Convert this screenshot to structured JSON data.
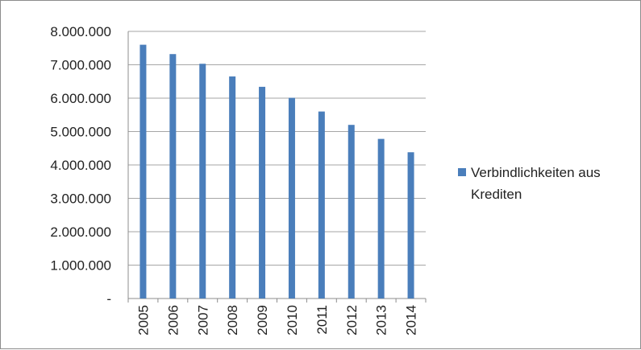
{
  "chart_data": {
    "type": "bar",
    "categories": [
      "2005",
      "2006",
      "2007",
      "2008",
      "2009",
      "2010",
      "2011",
      "2012",
      "2013",
      "2014"
    ],
    "series": [
      {
        "name": "Verbindlichkeiten aus Krediten",
        "values": [
          7600000,
          7320000,
          7030000,
          6650000,
          6340000,
          6010000,
          5600000,
          5200000,
          4780000,
          4380000
        ],
        "color": "#4a7ebb"
      }
    ],
    "title": "",
    "xlabel": "",
    "ylabel": "",
    "ylim": [
      0,
      8000000
    ],
    "y_ticks": [
      0,
      1000000,
      2000000,
      3000000,
      4000000,
      5000000,
      6000000,
      7000000,
      8000000
    ],
    "y_tick_labels": [
      "-",
      "1.000.000",
      "2.000.000",
      "3.000.000",
      "4.000.000",
      "5.000.000",
      "6.000.000",
      "7.000.000",
      "8.000.000"
    ],
    "legend": {
      "position": "right",
      "lines": [
        "Verbindlichkeiten aus",
        "Krediten"
      ]
    },
    "grid": true,
    "x_tick_rotation": "vertical"
  }
}
